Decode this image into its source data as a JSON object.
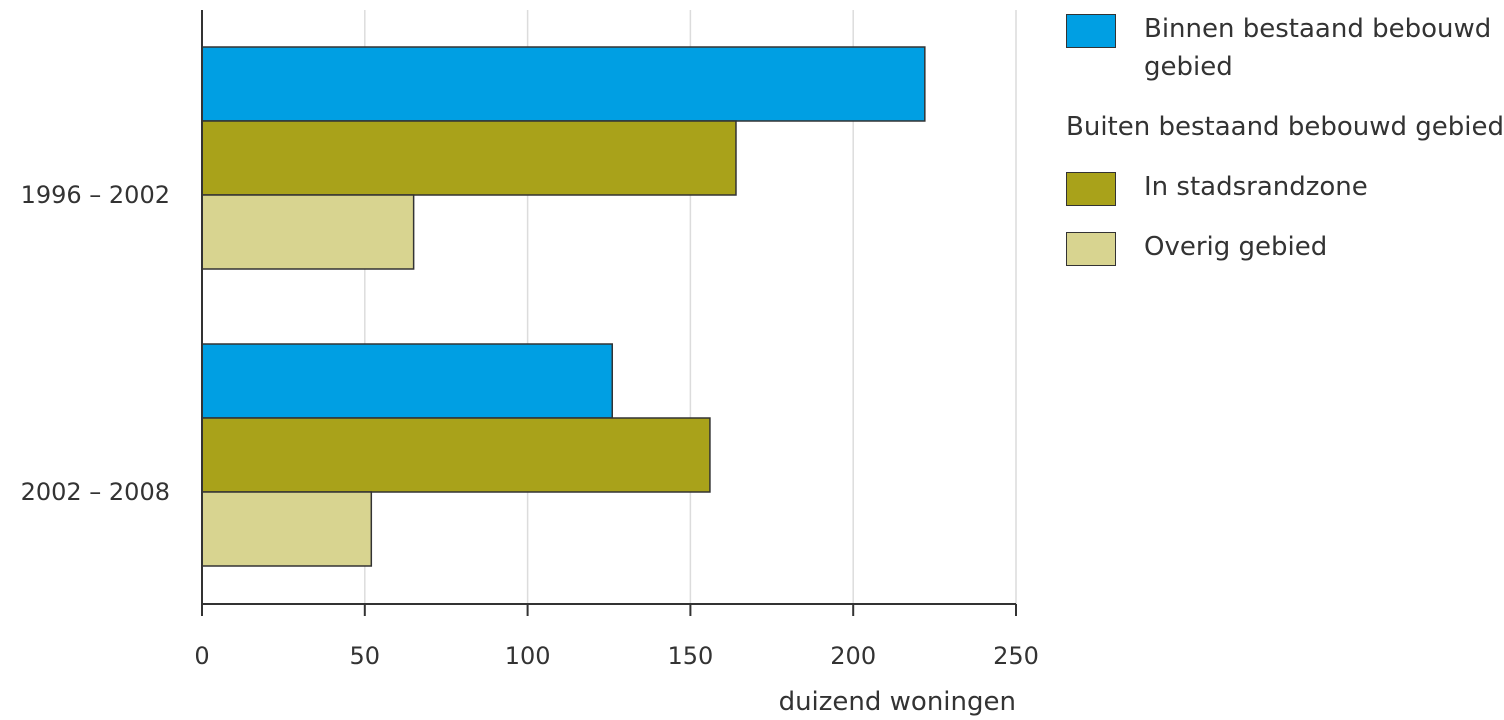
{
  "chart_data": {
    "type": "bar",
    "orientation": "horizontal",
    "categories": [
      "1996 – 2002",
      "2002 – 2008"
    ],
    "series": [
      {
        "name": "Binnen bestaand bebouwd gebied",
        "color": "#009fe3",
        "values": [
          222,
          126
        ]
      },
      {
        "name": "In stadsrandzone",
        "color": "#a9a21a",
        "values": [
          164,
          156
        ]
      },
      {
        "name": "Overig gebied",
        "color": "#d8d490",
        "values": [
          65,
          52
        ]
      }
    ],
    "xlabel": "duizend woningen",
    "xlim": [
      0,
      250
    ],
    "xticks": [
      0,
      50,
      100,
      150,
      200,
      250
    ],
    "xtick_labels": [
      "0",
      "50",
      "100",
      "150",
      "200",
      "250"
    ],
    "grid": "vertical",
    "legend": {
      "placement": "right",
      "group_heading": "Buiten bestaand bebouwd gebied"
    }
  }
}
